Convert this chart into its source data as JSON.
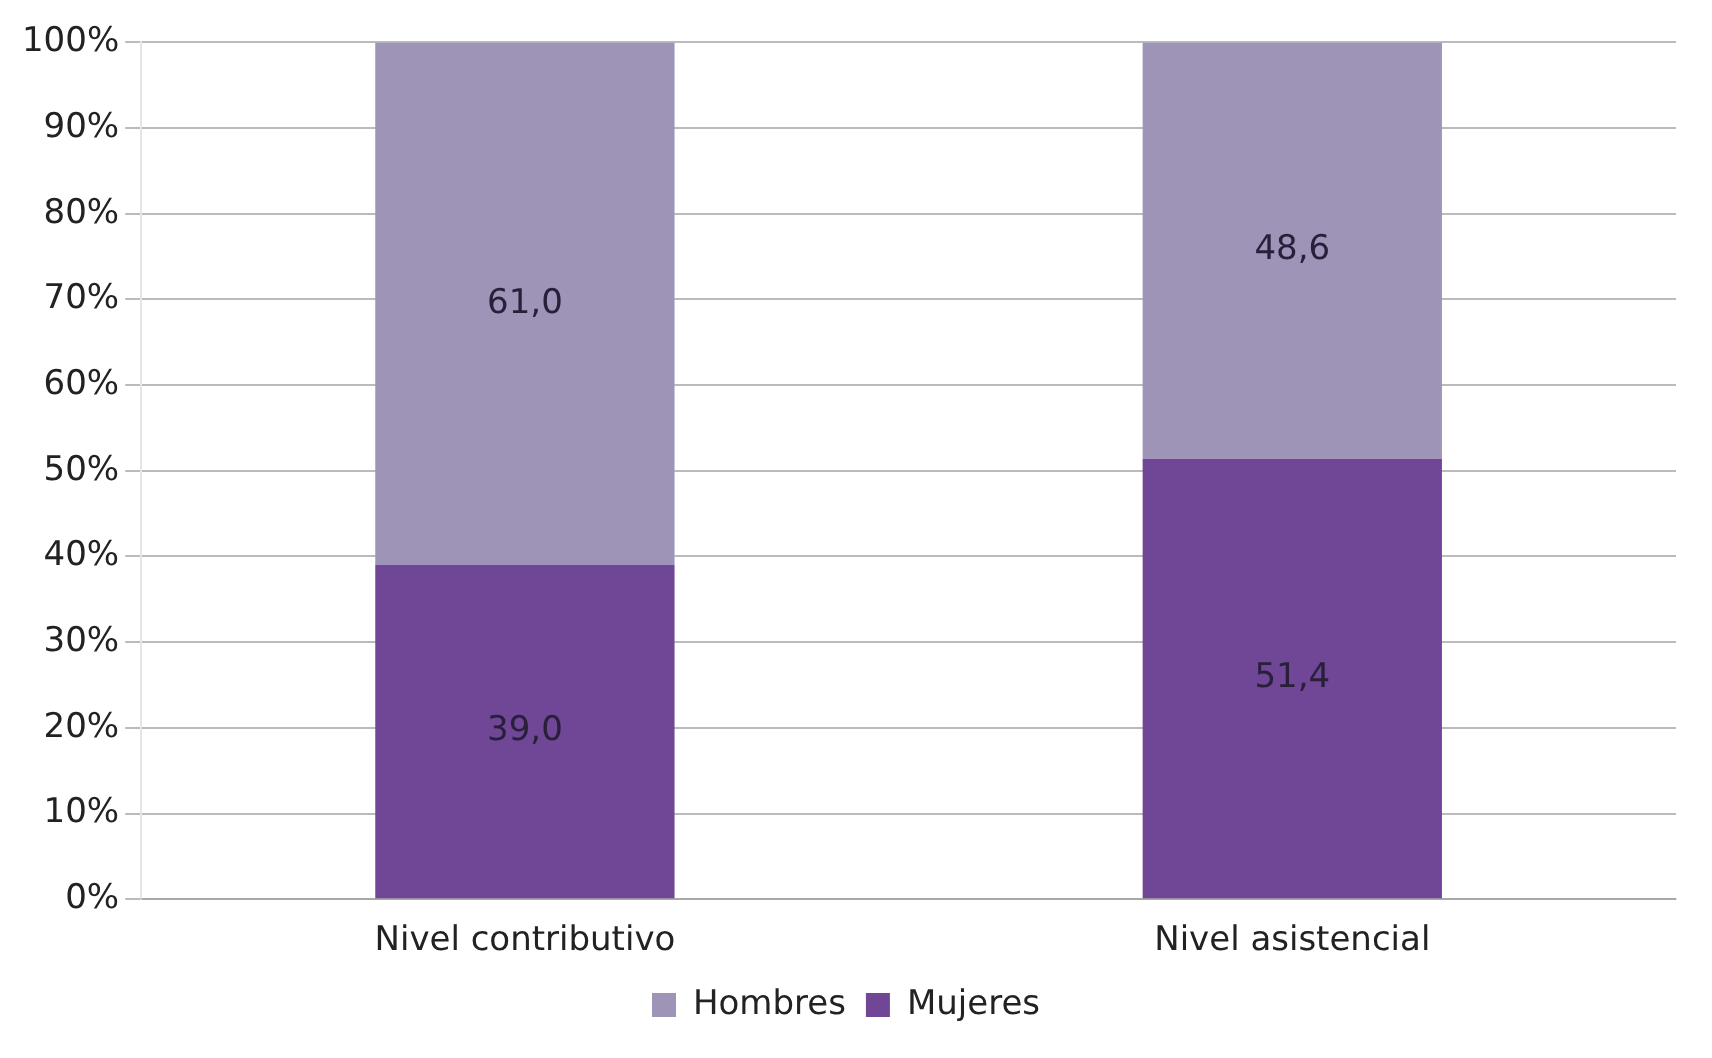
{
  "chart_data": {
    "type": "bar",
    "stacked": true,
    "categories": [
      "Nivel contributivo",
      "Nivel asistencial"
    ],
    "series": [
      {
        "name": "Mujeres",
        "color": "#6f4796",
        "values": [
          39.0,
          51.4
        ],
        "value_labels": [
          "39,0",
          "51,4"
        ]
      },
      {
        "name": "Hombres",
        "color": "#9d94b8",
        "values": [
          61.0,
          48.6
        ],
        "value_labels": [
          "61,0",
          "48,6"
        ]
      }
    ],
    "ylim": [
      0,
      100
    ],
    "yticks": [
      {
        "value": 0,
        "label": "0%"
      },
      {
        "value": 10,
        "label": "10%"
      },
      {
        "value": 20,
        "label": "20%"
      },
      {
        "value": 30,
        "label": "30%"
      },
      {
        "value": 40,
        "label": "40%"
      },
      {
        "value": 50,
        "label": "50%"
      },
      {
        "value": 60,
        "label": "60%"
      },
      {
        "value": 70,
        "label": "70%"
      },
      {
        "value": 80,
        "label": "80%"
      },
      {
        "value": 90,
        "label": "90%"
      },
      {
        "value": 100,
        "label": "100%"
      }
    ],
    "grid": "y",
    "legend": "bottom"
  }
}
